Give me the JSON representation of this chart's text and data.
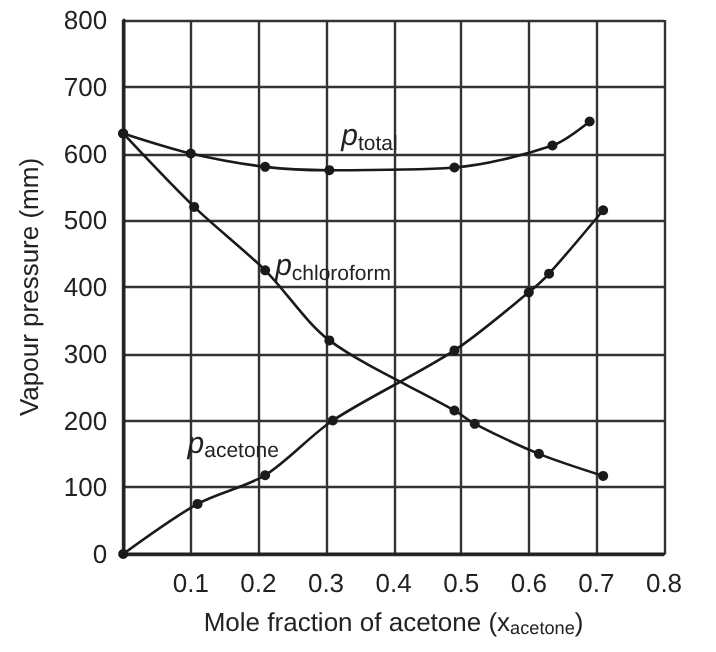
{
  "chart_data": {
    "type": "line",
    "xlabel": "Mole fraction of acetone (x$_{acetone}$)",
    "ylabel": "Vapour pressure (mm)",
    "series": [
      {
        "name": "p$_{total}$",
        "color": "#1a1a1a",
        "x": [
          0,
          0.1,
          0.21,
          0.305,
          0.49,
          0.635,
          0.69
        ],
        "values": [
          630,
          600,
          580,
          575,
          579,
          612,
          648
        ]
      },
      {
        "name": "p$_{chloroform}$",
        "color": "#1a1a1a",
        "x": [
          0,
          0.105,
          0.21,
          0.305,
          0.49,
          0.52,
          0.615,
          0.71
        ],
        "values": [
          630,
          520,
          425,
          320,
          215,
          195,
          150,
          117
        ]
      },
      {
        "name": "p$_{acetone}$",
        "color": "#1a1a1a",
        "x": [
          0,
          0.11,
          0.21,
          0.31,
          0.49,
          0.6,
          0.63,
          0.71
        ],
        "values": [
          0,
          75,
          118,
          200,
          305,
          392,
          420,
          515
        ]
      }
    ],
    "xlim": [
      0,
      0.8
    ],
    "xticks": [
      {
        "value": 0,
        "label": null
      },
      0.1,
      0.2,
      0.3,
      0.4,
      0.5,
      0.6,
      0.7,
      0.8
    ],
    "ylim": [
      0,
      800
    ],
    "yticks": [
      0,
      100,
      200,
      300,
      400,
      500,
      600,
      700,
      800
    ],
    "grid": true,
    "marker": "circle",
    "line_style": "solid"
  }
}
